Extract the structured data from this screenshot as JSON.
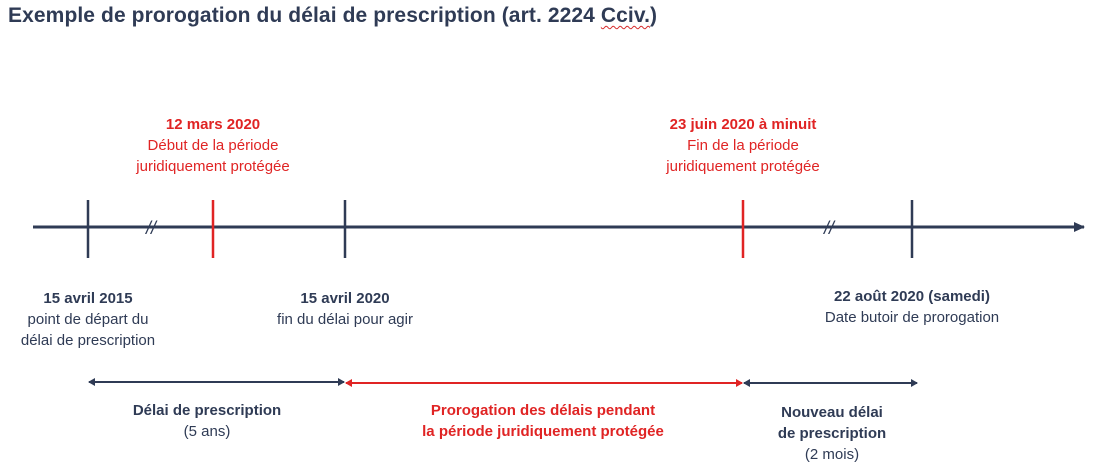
{
  "title": {
    "main": "Exemple de prorogation du délai de prescription (art. 2224 ",
    "squiggle": "Cciv.",
    "end": ")"
  },
  "top_labels": [
    {
      "bold": "12 mars 2020",
      "line1": "Début de la période",
      "line2": "juridiquement protégée"
    },
    {
      "bold": "23 juin 2020 à minuit",
      "line1": "Fin de la période",
      "line2": "juridiquement protégée"
    }
  ],
  "bottom_labels": [
    {
      "bold": "15 avril 2015",
      "line1": "point de départ du",
      "line2": "délai de prescription"
    },
    {
      "bold": "15 avril 2020",
      "line1": "fin du délai pour agir"
    },
    {
      "bold": "22 août 2020 (samedi)",
      "line1": "Date butoir de prorogation"
    }
  ],
  "breaks": [
    "//",
    "//"
  ],
  "spans": [
    {
      "bold": "Délai de prescription",
      "line1": "(5 ans)"
    },
    {
      "bold": "Prorogation des délais pendant",
      "bold2": "la période juridiquement protégée"
    },
    {
      "bold": "Nouveau délai",
      "bold2": "de prescription",
      "line1": "(2 mois)"
    }
  ],
  "colors": {
    "dark": "#2f3b55",
    "red": "#e02424"
  }
}
